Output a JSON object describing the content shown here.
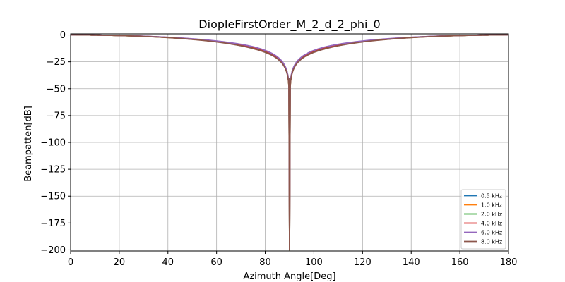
{
  "chart_data": {
    "type": "line",
    "title": "DiopleFirstOrder_M_2_d_2_phi_0",
    "xlabel": "Azimuth Angle[Deg]",
    "ylabel": "Beampatten[dB]",
    "xlim": [
      0,
      180
    ],
    "ylim": [
      -201,
      1
    ],
    "xticks": [
      0,
      20,
      40,
      60,
      80,
      100,
      120,
      140,
      160,
      180
    ],
    "yticks": [
      0,
      -25,
      -50,
      -75,
      -100,
      -125,
      -150,
      -175,
      -200
    ],
    "xtick_labels": [
      "0",
      "20",
      "40",
      "60",
      "80",
      "100",
      "120",
      "140",
      "160",
      "180"
    ],
    "ytick_labels": [
      "0",
      "−25",
      "−50",
      "−75",
      "−100",
      "−125",
      "−150",
      "−175",
      "−200"
    ],
    "grid": true,
    "legend_position": "lower-right",
    "null_at_deg": 90,
    "null_floor_db": -200,
    "series": [
      {
        "name": "0.5 kHz",
        "color": "#1f77b4",
        "offset_db": 0.0
      },
      {
        "name": "1.0 kHz",
        "color": "#ff7f0e",
        "offset_db": -0.6
      },
      {
        "name": "2.0 kHz",
        "color": "#2ca02c",
        "offset_db": -0.3
      },
      {
        "name": "4.0 kHz",
        "color": "#d62728",
        "offset_db": 0.3
      },
      {
        "name": "6.0 kHz",
        "color": "#9467bd",
        "offset_db": 0.8
      },
      {
        "name": "8.0 kHz",
        "color": "#8c564b",
        "offset_db": -1.0
      }
    ]
  }
}
